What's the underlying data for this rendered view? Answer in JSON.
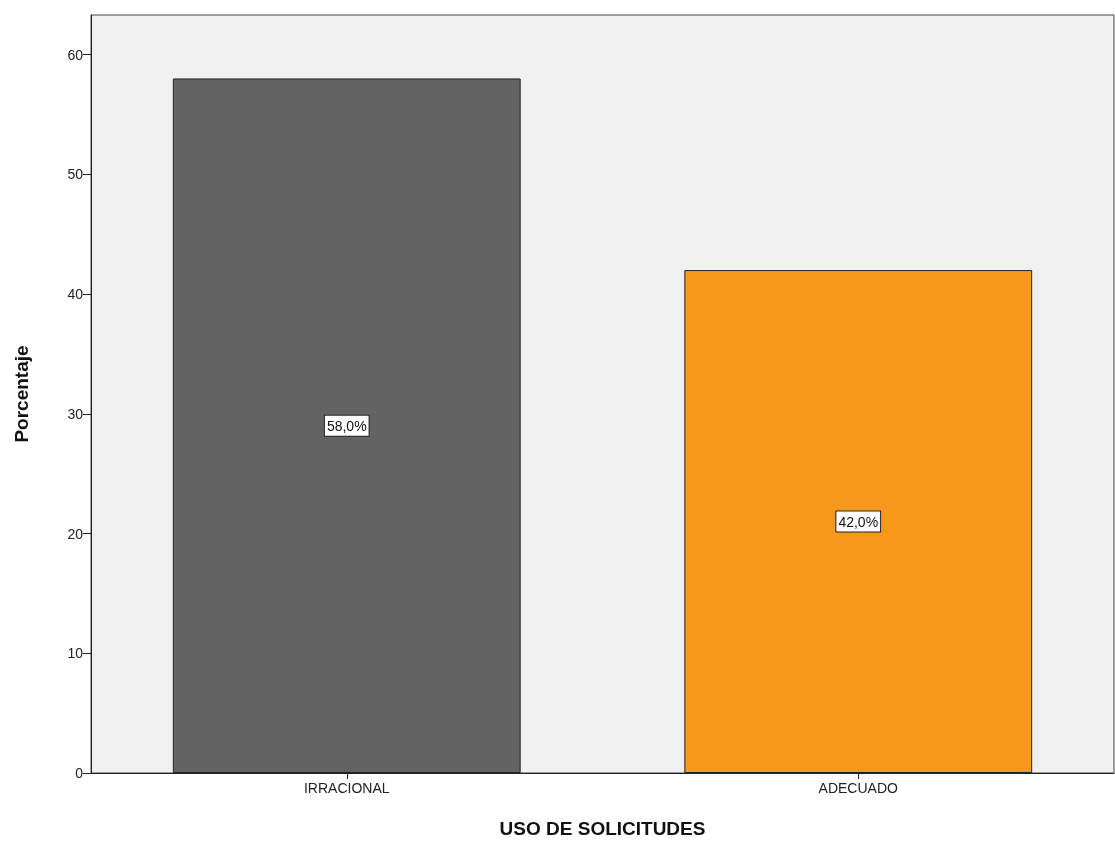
{
  "chart_data": {
    "type": "bar",
    "xlabel": "USO DE SOLICITUDES",
    "ylabel": "Porcentaje",
    "categories": [
      "IRRACIONAL",
      "ADECUADO"
    ],
    "values": [
      58,
      42
    ],
    "colors": [
      "#636363",
      "#f7981d"
    ],
    "value_labels": [
      "58,0%",
      "42,0%"
    ],
    "ylim": [
      0,
      63.3
    ],
    "yticks": [
      0,
      10,
      20,
      30,
      40,
      50,
      60
    ],
    "grid": false
  }
}
